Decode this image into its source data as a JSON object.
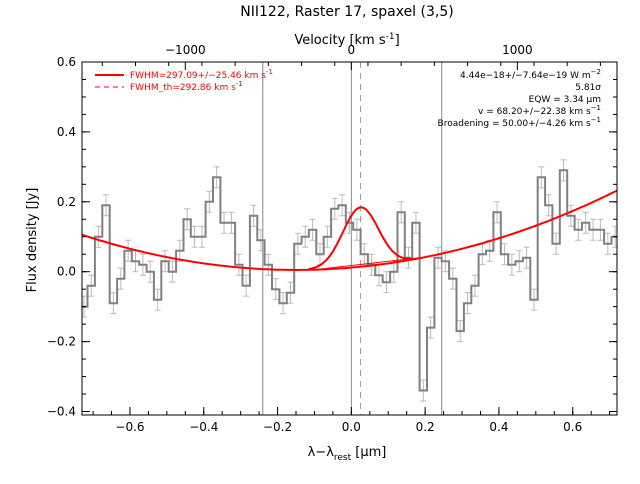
{
  "chart_data": {
    "type": "line",
    "title": "NII122, Raster 17, spaxel (3,5)",
    "xlabel": "λ−λ",
    "xlabel_sub": "rest",
    "xlabel_unit": " [μm]",
    "ylabel": "Flux density [Jy]",
    "top_axis_label": "Velocity [km s",
    "top_axis_label_sup": "-1",
    "top_axis_label_end": "]",
    "xlim": [
      -0.73,
      0.72
    ],
    "ylim": [
      -0.41,
      0.6
    ],
    "x_ticks": [
      -0.6,
      -0.4,
      -0.2,
      0.0,
      0.2,
      0.4,
      0.6
    ],
    "x_tick_labels": [
      "−0.6",
      "−0.4",
      "−0.2",
      "0.0",
      "0.2",
      "0.4",
      "0.6"
    ],
    "y_ticks": [
      -0.4,
      -0.2,
      0.0,
      0.2,
      0.4,
      0.6
    ],
    "y_tick_labels": [
      "−0.4",
      "−0.2",
      "0.0",
      "0.2",
      "0.4",
      "0.6"
    ],
    "top_ticks": [
      -0.45,
      0.0,
      0.45
    ],
    "top_tick_labels": [
      "−1000",
      "0",
      "1000"
    ],
    "grid": false,
    "vertical_lines": [
      -0.24,
      0.0,
      0.245
    ],
    "dashed_line": 0.025,
    "series": [
      {
        "kind": "histogram",
        "color": "#808080",
        "x": [
          -0.725,
          -0.705,
          -0.685,
          -0.665,
          -0.645,
          -0.625,
          -0.605,
          -0.585,
          -0.565,
          -0.545,
          -0.525,
          -0.505,
          -0.485,
          -0.465,
          -0.445,
          -0.425,
          -0.405,
          -0.385,
          -0.365,
          -0.345,
          -0.325,
          -0.305,
          -0.285,
          -0.265,
          -0.245,
          -0.225,
          -0.205,
          -0.185,
          -0.165,
          -0.145,
          -0.125,
          -0.105,
          -0.085,
          -0.065,
          -0.045,
          -0.025,
          -0.005,
          0.015,
          0.035,
          0.055,
          0.075,
          0.095,
          0.115,
          0.135,
          0.155,
          0.175,
          0.195,
          0.215,
          0.235,
          0.255,
          0.275,
          0.295,
          0.315,
          0.335,
          0.355,
          0.375,
          0.395,
          0.415,
          0.435,
          0.455,
          0.475,
          0.495,
          0.515,
          0.535,
          0.555,
          0.575,
          0.595,
          0.615,
          0.635,
          0.655,
          0.675,
          0.695,
          0.715
        ],
        "y": [
          -0.1,
          -0.04,
          0.1,
          0.19,
          -0.09,
          -0.02,
          0.06,
          0.03,
          0.02,
          0.0,
          -0.08,
          0.03,
          0.0,
          0.06,
          0.15,
          0.1,
          0.1,
          0.2,
          0.27,
          0.14,
          0.14,
          0.02,
          -0.04,
          0.16,
          0.09,
          0.02,
          -0.05,
          -0.09,
          -0.06,
          0.08,
          0.1,
          0.12,
          0.05,
          0.1,
          0.18,
          0.19,
          0.14,
          0.12,
          0.05,
          0.02,
          -0.01,
          -0.03,
          0.0,
          0.17,
          0.04,
          0.14,
          -0.34,
          -0.16,
          0.04,
          0.03,
          -0.02,
          -0.17,
          -0.09,
          -0.04,
          0.05,
          0.06,
          0.17,
          0.05,
          0.02,
          0.03,
          0.04,
          -0.08,
          0.27,
          0.19,
          0.08,
          0.29,
          0.16,
          0.12,
          0.14,
          0.12,
          0.12,
          0.08,
          0.1
        ],
        "err": 0.03
      },
      {
        "kind": "fit",
        "name": "FWHM=297.09+/−25.46 km s",
        "name_sup": "-1",
        "color": "#ff0000"
      },
      {
        "kind": "dashed",
        "name": "FWHM_th=292.86 km s",
        "name_sup": "-1",
        "color": "#ff0000"
      }
    ],
    "fit_model": {
      "baseline": {
        "center": -0.15,
        "min": 0.005,
        "curv": 0.3
      },
      "gaussian": {
        "center": 0.025,
        "amp": 0.17,
        "sigma": 0.048
      }
    },
    "annotations": [
      {
        "main": "4.44e−18+/−7.64e−19 W m",
        "sup": "−2"
      },
      {
        "main": "5.81σ",
        "sup": ""
      },
      {
        "main": "EQW = 3.34 μm",
        "sup": ""
      },
      {
        "main": "v = 68.20+/−22.38 km s",
        "sup": "−1"
      },
      {
        "main": "Broadening = 50.00+/−4.26 km s",
        "sup": "−1"
      }
    ]
  }
}
